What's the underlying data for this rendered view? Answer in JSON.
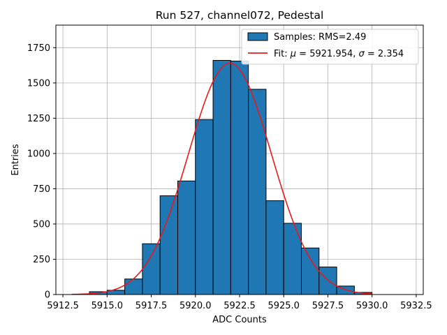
{
  "chart_data": {
    "type": "bar",
    "title": "Run 527, channel072, Pedestal",
    "xlabel": "ADC Counts",
    "ylabel": "Entries",
    "xlim": [
      5912.1,
      5932.9
    ],
    "ylim": [
      0,
      1910
    ],
    "xticks": [
      5912.5,
      5915.0,
      5917.5,
      5920.0,
      5922.5,
      5925.0,
      5927.5,
      5930.0,
      5932.5
    ],
    "xtick_labels": [
      "5912.5",
      "5915.0",
      "5917.5",
      "5920.0",
      "5922.5",
      "5925.0",
      "5927.5",
      "5930.0",
      "5932.5"
    ],
    "yticks": [
      0,
      250,
      500,
      750,
      1000,
      1250,
      1500,
      1750
    ],
    "ytick_labels": [
      "0",
      "250",
      "500",
      "750",
      "1000",
      "1250",
      "1500",
      "1750"
    ],
    "grid": true,
    "legend_position": "top-right",
    "bar_color": "#1f77b4",
    "fit_color": "#e41a1c",
    "histogram": {
      "name": "Samples: RMS=2.49",
      "bins": [
        {
          "x0": 5914,
          "x1": 5915,
          "count": 20
        },
        {
          "x0": 5915,
          "x1": 5916,
          "count": 30
        },
        {
          "x0": 5916,
          "x1": 5917,
          "count": 110
        },
        {
          "x0": 5917,
          "x1": 5918,
          "count": 360
        },
        {
          "x0": 5918,
          "x1": 5919,
          "count": 700
        },
        {
          "x0": 5919,
          "x1": 5920,
          "count": 805
        },
        {
          "x0": 5920,
          "x1": 5921,
          "count": 1240
        },
        {
          "x0": 5921,
          "x1": 5922,
          "count": 1660
        },
        {
          "x0": 5922,
          "x1": 5923,
          "count": 1655
        },
        {
          "x0": 5923,
          "x1": 5924,
          "count": 1455
        },
        {
          "x0": 5924,
          "x1": 5925,
          "count": 665
        },
        {
          "x0": 5925,
          "x1": 5926,
          "count": 505
        },
        {
          "x0": 5926,
          "x1": 5927,
          "count": 330
        },
        {
          "x0": 5927,
          "x1": 5928,
          "count": 195
        },
        {
          "x0": 5928,
          "x1": 5929,
          "count": 60
        },
        {
          "x0": 5929,
          "x1": 5930,
          "count": 15
        }
      ]
    },
    "fit": {
      "name_prefix": "Fit: ",
      "mu_symbol": "μ",
      "sigma_symbol": "σ",
      "mu_text": " = 5921.954, ",
      "sigma_text": " = 2.354",
      "mu": 5921.954,
      "sigma": 2.354,
      "amplitude": 1640,
      "x_range": [
        5913,
        5930
      ]
    }
  }
}
